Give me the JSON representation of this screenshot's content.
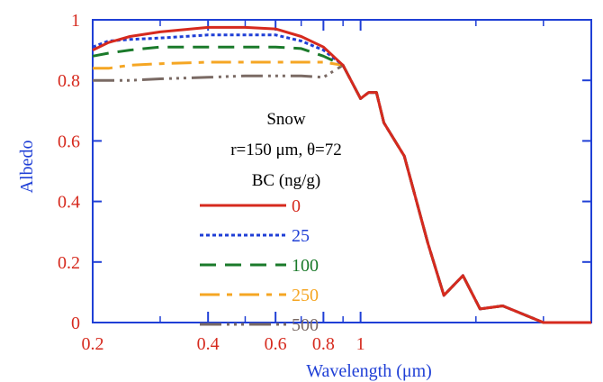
{
  "chart_data": {
    "type": "line",
    "xlabel": "Wavelength (μm)",
    "ylabel": "Albedo",
    "x_scale": "log",
    "xlim": [
      0.2,
      4.0
    ],
    "ylim": [
      0,
      1
    ],
    "x_ticks": [
      {
        "value": 0.2,
        "label": "0.2"
      },
      {
        "value": 0.4,
        "label": "0.4"
      },
      {
        "value": 0.6,
        "label": "0.6"
      },
      {
        "value": 0.8,
        "label": "0.8"
      },
      {
        "value": 1.0,
        "label": "1"
      }
    ],
    "x_minor_ticks": [
      0.3,
      0.5,
      0.7,
      0.9,
      2.0,
      3.0
    ],
    "y_ticks": [
      {
        "value": 0,
        "label": "0"
      },
      {
        "value": 0.2,
        "label": "0.2"
      },
      {
        "value": 0.4,
        "label": "0.4"
      },
      {
        "value": 0.6,
        "label": "0.6"
      },
      {
        "value": 0.8,
        "label": "0.8"
      },
      {
        "value": 1.0,
        "label": "1"
      }
    ],
    "grid": false,
    "annotations": {
      "line1": "Snow",
      "line2": "r=150 μm, θ=72",
      "line3": "BC (ng/g)"
    },
    "legend_position": "center-left",
    "colors": {
      "tick_label": "#d62a1e",
      "axis_title": "#1f3fd6",
      "axis": "#1f3fd6"
    },
    "shared_tail": [
      [
        0.9,
        0.85
      ],
      [
        1.0,
        0.74
      ],
      [
        1.05,
        0.76
      ],
      [
        1.1,
        0.76
      ],
      [
        1.15,
        0.66
      ],
      [
        1.3,
        0.55
      ],
      [
        1.5,
        0.26
      ],
      [
        1.65,
        0.09
      ],
      [
        1.85,
        0.155
      ],
      [
        2.05,
        0.045
      ],
      [
        2.35,
        0.055
      ],
      [
        3.0,
        0.0
      ],
      [
        4.0,
        0.0
      ]
    ],
    "series": [
      {
        "name": "0",
        "color": "#d62a1e",
        "dash": "",
        "points": [
          [
            0.2,
            0.9
          ],
          [
            0.22,
            0.925
          ],
          [
            0.25,
            0.945
          ],
          [
            0.3,
            0.96
          ],
          [
            0.4,
            0.975
          ],
          [
            0.5,
            0.975
          ],
          [
            0.6,
            0.97
          ],
          [
            0.7,
            0.945
          ],
          [
            0.8,
            0.91
          ]
        ]
      },
      {
        "name": "25",
        "color": "#1f3fd6",
        "dash": "4,3",
        "points": [
          [
            0.2,
            0.91
          ],
          [
            0.22,
            0.93
          ],
          [
            0.25,
            0.935
          ],
          [
            0.3,
            0.94
          ],
          [
            0.4,
            0.95
          ],
          [
            0.5,
            0.95
          ],
          [
            0.6,
            0.95
          ],
          [
            0.7,
            0.93
          ],
          [
            0.8,
            0.9
          ]
        ]
      },
      {
        "name": "100",
        "color": "#1a7a2a",
        "dash": "18,10",
        "points": [
          [
            0.2,
            0.88
          ],
          [
            0.22,
            0.89
          ],
          [
            0.25,
            0.9
          ],
          [
            0.3,
            0.91
          ],
          [
            0.4,
            0.91
          ],
          [
            0.5,
            0.91
          ],
          [
            0.6,
            0.91
          ],
          [
            0.7,
            0.905
          ],
          [
            0.8,
            0.88
          ]
        ]
      },
      {
        "name": "250",
        "color": "#f5a623",
        "dash": "22,8,6,8",
        "points": [
          [
            0.2,
            0.84
          ],
          [
            0.22,
            0.84
          ],
          [
            0.25,
            0.85
          ],
          [
            0.3,
            0.855
          ],
          [
            0.4,
            0.86
          ],
          [
            0.5,
            0.86
          ],
          [
            0.6,
            0.86
          ],
          [
            0.7,
            0.86
          ],
          [
            0.8,
            0.86
          ]
        ]
      },
      {
        "name": "500",
        "color": "#7a6a64",
        "dash": "24,6,3,5,3,5,3,6",
        "points": [
          [
            0.2,
            0.8
          ],
          [
            0.22,
            0.8
          ],
          [
            0.25,
            0.8
          ],
          [
            0.3,
            0.805
          ],
          [
            0.4,
            0.81
          ],
          [
            0.5,
            0.815
          ],
          [
            0.6,
            0.815
          ],
          [
            0.7,
            0.815
          ],
          [
            0.8,
            0.81
          ]
        ]
      }
    ]
  }
}
